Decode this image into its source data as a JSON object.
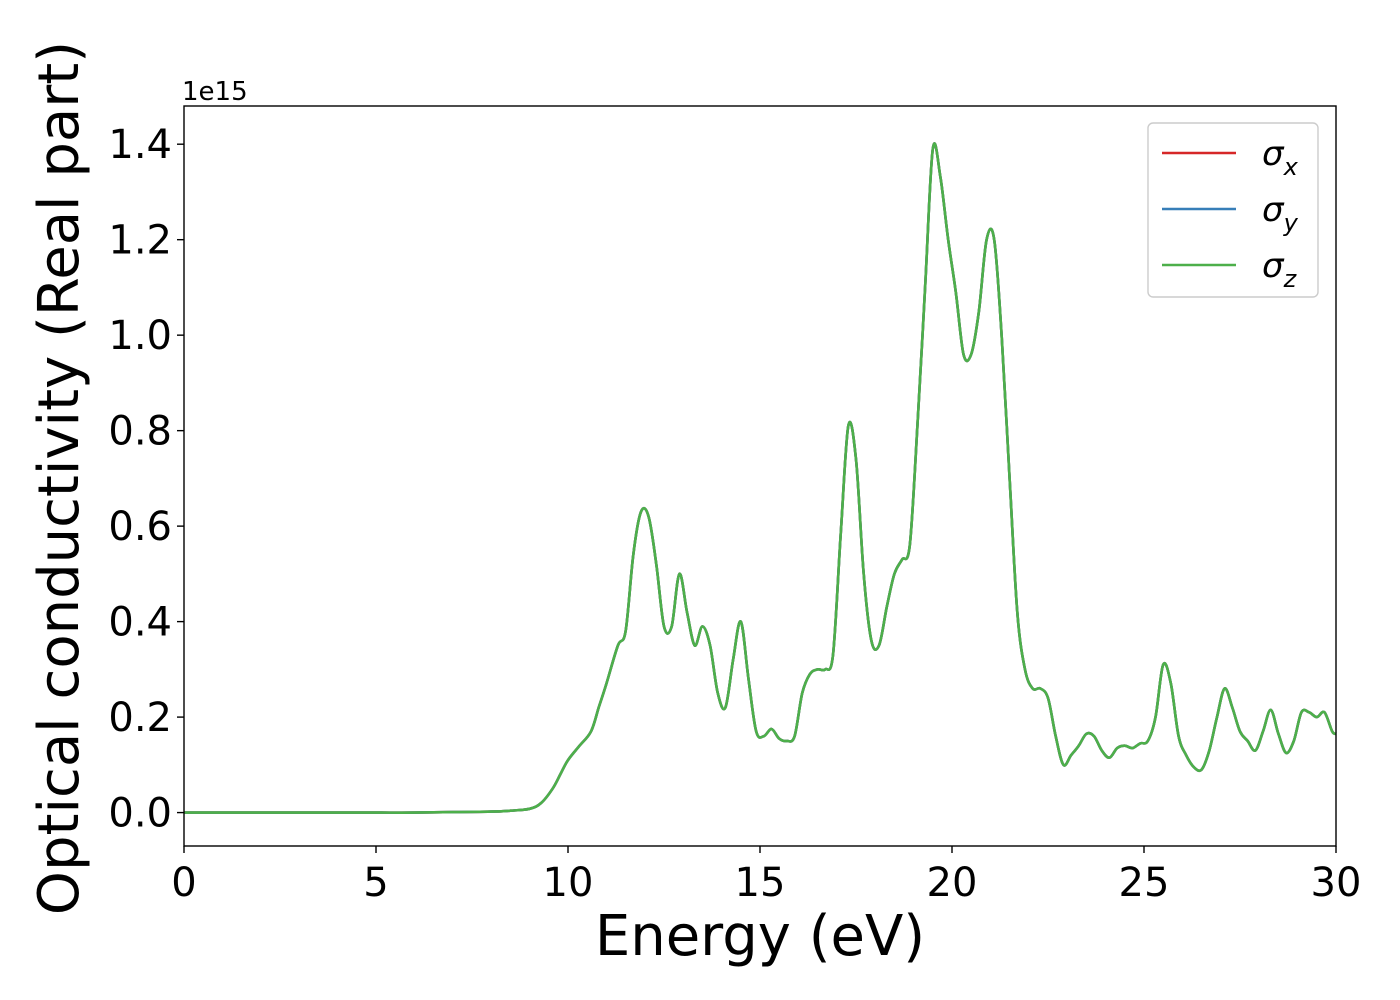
{
  "chart_data": {
    "type": "line",
    "title": "",
    "xlabel": "Energy (eV)",
    "ylabel": "Optical conductivity (Real part)",
    "y_offset_label": "1e15",
    "xlim": [
      0,
      30
    ],
    "ylim": [
      -0.07,
      1.48
    ],
    "x_ticks": [
      0,
      5,
      10,
      15,
      20,
      25,
      30
    ],
    "x_tick_labels": [
      "0",
      "5",
      "10",
      "15",
      "20",
      "25",
      "30"
    ],
    "y_ticks": [
      0.0,
      0.2,
      0.4,
      0.6,
      0.8,
      1.0,
      1.2,
      1.4
    ],
    "y_tick_labels": [
      "0.0",
      "0.2",
      "0.4",
      "0.6",
      "0.8",
      "1.0",
      "1.2",
      "1.4"
    ],
    "grid": false,
    "legend_position": "top-right",
    "x": [
      0,
      1,
      2,
      3,
      4,
      5,
      6,
      7,
      8,
      8.5,
      9,
      9.3,
      9.6,
      9.8,
      10.0,
      10.3,
      10.6,
      10.8,
      11.0,
      11.3,
      11.5,
      11.7,
      11.9,
      12.1,
      12.3,
      12.5,
      12.7,
      12.9,
      13.1,
      13.3,
      13.5,
      13.7,
      13.9,
      14.1,
      14.3,
      14.5,
      14.7,
      14.9,
      15.1,
      15.3,
      15.5,
      15.7,
      15.9,
      16.1,
      16.3,
      16.5,
      16.7,
      16.9,
      17.1,
      17.3,
      17.5,
      17.7,
      17.9,
      18.1,
      18.3,
      18.5,
      18.7,
      18.9,
      19.1,
      19.3,
      19.5,
      19.7,
      19.9,
      20.1,
      20.3,
      20.5,
      20.7,
      20.9,
      21.1,
      21.3,
      21.5,
      21.7,
      21.9,
      22.1,
      22.3,
      22.5,
      22.7,
      22.9,
      23.1,
      23.3,
      23.5,
      23.7,
      23.9,
      24.1,
      24.3,
      24.5,
      24.7,
      24.9,
      25.1,
      25.3,
      25.5,
      25.7,
      25.9,
      26.1,
      26.3,
      26.5,
      26.7,
      26.9,
      27.1,
      27.3,
      27.5,
      27.7,
      27.9,
      28.1,
      28.3,
      28.5,
      28.7,
      28.9,
      29.1,
      29.3,
      29.5,
      29.7,
      29.9,
      30
    ],
    "series": [
      {
        "name": "σx",
        "color": "#d62728",
        "values": [
          0.0,
          0.0,
          0.0,
          0.0,
          0.0,
          0.0,
          0.0,
          0.001,
          0.002,
          0.004,
          0.008,
          0.02,
          0.05,
          0.08,
          0.11,
          0.14,
          0.17,
          0.22,
          0.27,
          0.35,
          0.38,
          0.54,
          0.63,
          0.62,
          0.52,
          0.39,
          0.39,
          0.5,
          0.42,
          0.35,
          0.39,
          0.35,
          0.25,
          0.22,
          0.32,
          0.4,
          0.28,
          0.17,
          0.16,
          0.175,
          0.155,
          0.15,
          0.16,
          0.25,
          0.29,
          0.3,
          0.3,
          0.33,
          0.58,
          0.81,
          0.74,
          0.5,
          0.36,
          0.35,
          0.43,
          0.5,
          0.53,
          0.56,
          0.81,
          1.1,
          1.39,
          1.33,
          1.2,
          1.09,
          0.96,
          0.96,
          1.05,
          1.2,
          1.2,
          0.99,
          0.7,
          0.42,
          0.3,
          0.26,
          0.26,
          0.24,
          0.16,
          0.1,
          0.12,
          0.14,
          0.165,
          0.16,
          0.13,
          0.115,
          0.135,
          0.14,
          0.135,
          0.145,
          0.15,
          0.2,
          0.31,
          0.27,
          0.16,
          0.12,
          0.095,
          0.09,
          0.13,
          0.2,
          0.26,
          0.22,
          0.17,
          0.15,
          0.13,
          0.17,
          0.215,
          0.165,
          0.125,
          0.15,
          0.21,
          0.21,
          0.2,
          0.21,
          0.17,
          0.165
        ]
      },
      {
        "name": "σy",
        "color": "#377eb8",
        "values": [
          0.0,
          0.0,
          0.0,
          0.0,
          0.0,
          0.0,
          0.0,
          0.001,
          0.002,
          0.004,
          0.008,
          0.02,
          0.05,
          0.08,
          0.11,
          0.14,
          0.17,
          0.22,
          0.27,
          0.35,
          0.38,
          0.54,
          0.63,
          0.62,
          0.52,
          0.39,
          0.39,
          0.5,
          0.42,
          0.35,
          0.39,
          0.35,
          0.25,
          0.22,
          0.32,
          0.4,
          0.28,
          0.17,
          0.16,
          0.175,
          0.155,
          0.15,
          0.16,
          0.25,
          0.29,
          0.3,
          0.3,
          0.33,
          0.58,
          0.81,
          0.74,
          0.5,
          0.36,
          0.35,
          0.43,
          0.5,
          0.53,
          0.56,
          0.81,
          1.1,
          1.39,
          1.33,
          1.2,
          1.09,
          0.96,
          0.96,
          1.05,
          1.2,
          1.2,
          0.99,
          0.7,
          0.42,
          0.3,
          0.26,
          0.26,
          0.24,
          0.16,
          0.1,
          0.12,
          0.14,
          0.165,
          0.16,
          0.13,
          0.115,
          0.135,
          0.14,
          0.135,
          0.145,
          0.15,
          0.2,
          0.31,
          0.27,
          0.16,
          0.12,
          0.095,
          0.09,
          0.13,
          0.2,
          0.26,
          0.22,
          0.17,
          0.15,
          0.13,
          0.17,
          0.215,
          0.165,
          0.125,
          0.15,
          0.21,
          0.21,
          0.2,
          0.21,
          0.17,
          0.165
        ]
      },
      {
        "name": "σz",
        "color": "#4daf4a",
        "values": [
          0.0,
          0.0,
          0.0,
          0.0,
          0.0,
          0.0,
          0.0,
          0.001,
          0.002,
          0.004,
          0.008,
          0.02,
          0.05,
          0.08,
          0.11,
          0.14,
          0.17,
          0.22,
          0.27,
          0.35,
          0.38,
          0.54,
          0.63,
          0.62,
          0.52,
          0.39,
          0.39,
          0.5,
          0.42,
          0.35,
          0.39,
          0.35,
          0.25,
          0.22,
          0.32,
          0.4,
          0.28,
          0.17,
          0.16,
          0.175,
          0.155,
          0.15,
          0.16,
          0.25,
          0.29,
          0.3,
          0.3,
          0.33,
          0.58,
          0.81,
          0.74,
          0.5,
          0.36,
          0.35,
          0.43,
          0.5,
          0.53,
          0.56,
          0.81,
          1.1,
          1.39,
          1.33,
          1.2,
          1.09,
          0.96,
          0.96,
          1.05,
          1.2,
          1.2,
          0.99,
          0.7,
          0.42,
          0.3,
          0.26,
          0.26,
          0.24,
          0.16,
          0.1,
          0.12,
          0.14,
          0.165,
          0.16,
          0.13,
          0.115,
          0.135,
          0.14,
          0.135,
          0.145,
          0.15,
          0.2,
          0.31,
          0.27,
          0.16,
          0.12,
          0.095,
          0.09,
          0.13,
          0.2,
          0.26,
          0.22,
          0.17,
          0.15,
          0.13,
          0.17,
          0.215,
          0.165,
          0.125,
          0.15,
          0.21,
          0.21,
          0.2,
          0.21,
          0.17,
          0.165
        ]
      }
    ],
    "legend": [
      {
        "symbol": "σ",
        "subscript": "x"
      },
      {
        "symbol": "σ",
        "subscript": "y"
      },
      {
        "symbol": "σ",
        "subscript": "z"
      }
    ]
  }
}
